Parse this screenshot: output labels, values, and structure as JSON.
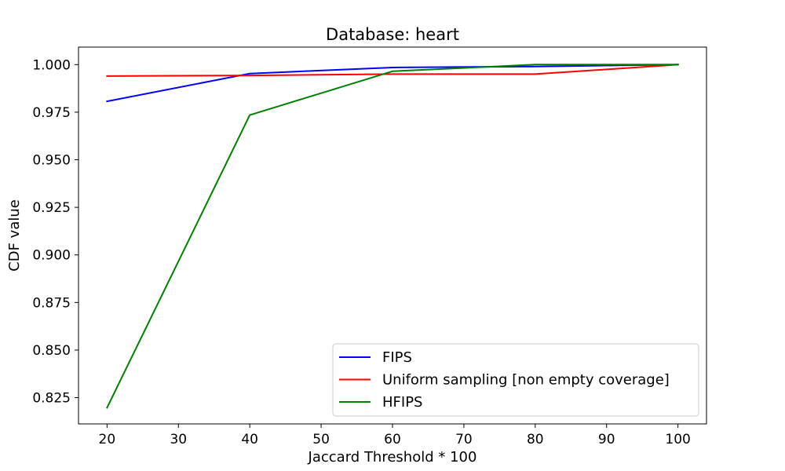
{
  "chart_data": {
    "type": "line",
    "title": "Database: heart",
    "xlabel": "Jaccard Threshold * 100",
    "ylabel": "CDF value",
    "x": [
      20,
      40,
      60,
      80,
      100
    ],
    "xlim": [
      16,
      104
    ],
    "ylim": [
      0.8112,
      1.0092
    ],
    "xticks": [
      20,
      30,
      40,
      50,
      60,
      70,
      80,
      90,
      100
    ],
    "yticks": [
      0.825,
      0.85,
      0.875,
      0.9,
      0.925,
      0.95,
      0.975,
      1.0
    ],
    "ytick_labels": [
      "0.825",
      "0.850",
      "0.875",
      "0.900",
      "0.925",
      "0.950",
      "0.975",
      "1.000"
    ],
    "grid": false,
    "legend_position": "bottom-right",
    "series": [
      {
        "name": "FIPS",
        "color": "#0000ff",
        "values": [
          0.9807,
          0.9953,
          0.9985,
          0.999,
          1.0
        ]
      },
      {
        "name": "Uniform sampling [non empty coverage]",
        "color": "#ff0000",
        "values": [
          0.994,
          0.9943,
          0.995,
          0.995,
          1.0
        ]
      },
      {
        "name": "HFIPS",
        "color": "#008000",
        "values": [
          0.8197,
          0.9735,
          0.9965,
          1.0,
          1.0
        ]
      }
    ]
  }
}
